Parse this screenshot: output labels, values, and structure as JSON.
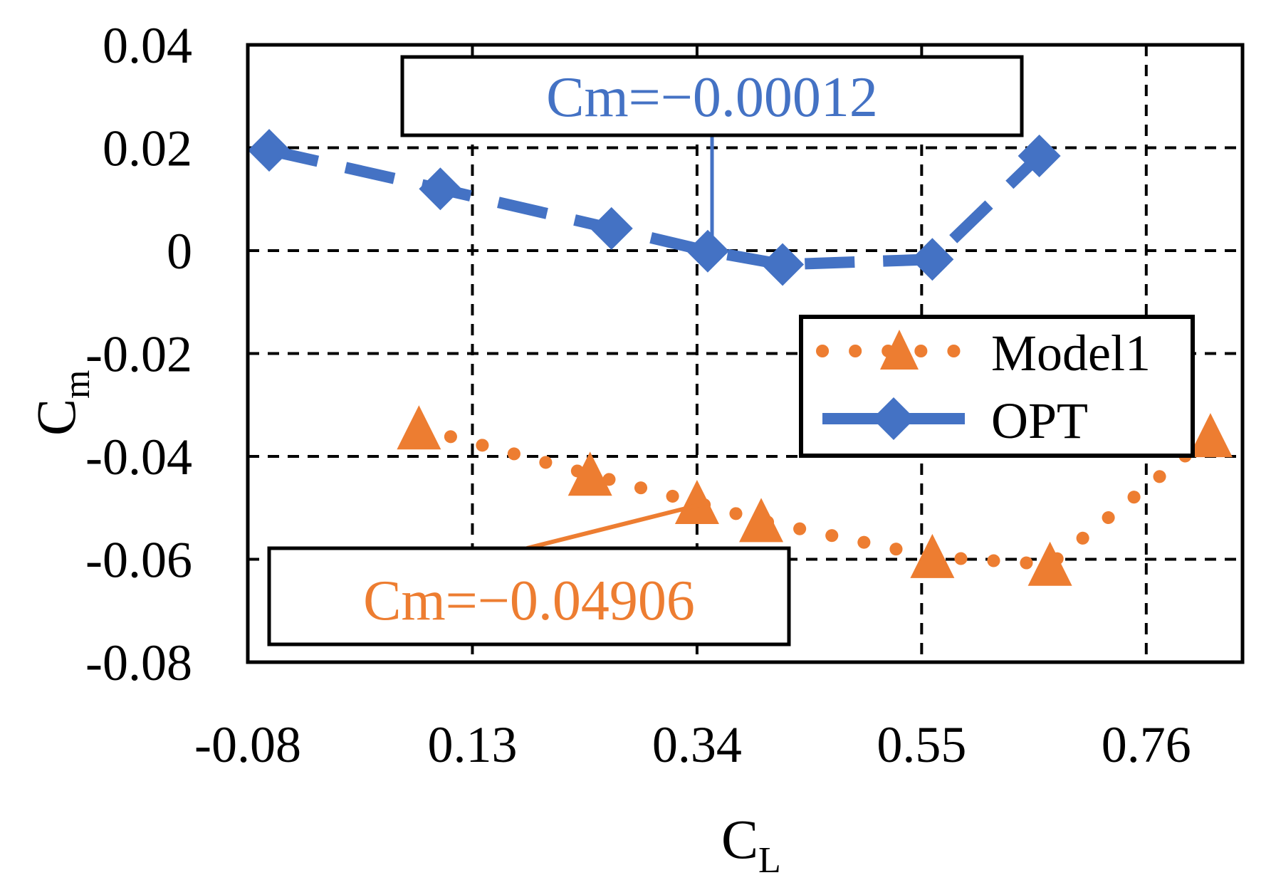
{
  "chart_data": {
    "type": "line",
    "xlabel_main": "C",
    "xlabel_sub": "L",
    "ylabel_main": "C",
    "ylabel_sub": "m",
    "xlim": [
      -0.08,
      0.85
    ],
    "ylim": [
      -0.08,
      0.04
    ],
    "xticks": [
      -0.08,
      0.13,
      0.34,
      0.55,
      0.76
    ],
    "xtick_labels": [
      "-0.08",
      "0.13",
      "0.34",
      "0.55",
      "0.76"
    ],
    "yticks": [
      0.04,
      0.02,
      0,
      -0.02,
      -0.04,
      -0.06,
      -0.08
    ],
    "ytick_labels": [
      "0.04",
      "0.02",
      "0",
      "-0.02",
      "-0.04",
      "-0.06",
      "-0.08"
    ],
    "grid": true,
    "legend_position": "center-right",
    "series": [
      {
        "name": "Model1",
        "color": "#ED7D31",
        "line_style": "dotted",
        "marker": "triangle",
        "x": [
          0.08,
          0.24,
          0.34,
          0.4,
          0.56,
          0.67,
          0.82
        ],
        "y": [
          -0.0345,
          -0.0435,
          -0.049,
          -0.0525,
          -0.0595,
          -0.061,
          -0.036
        ]
      },
      {
        "name": "OPT",
        "color": "#4472C4",
        "line_style": "dashed",
        "marker": "diamond",
        "x": [
          -0.06,
          0.1,
          0.26,
          0.35,
          0.42,
          0.56,
          0.66
        ],
        "y": [
          0.0195,
          0.012,
          0.0043,
          -0.0001,
          -0.0027,
          -0.0017,
          0.0184
        ]
      }
    ],
    "annotations": [
      {
        "text": "Cm=−0.00012",
        "color": "#4472C4"
      },
      {
        "text": "Cm=−0.04906",
        "color": "#ED7D31"
      }
    ]
  }
}
